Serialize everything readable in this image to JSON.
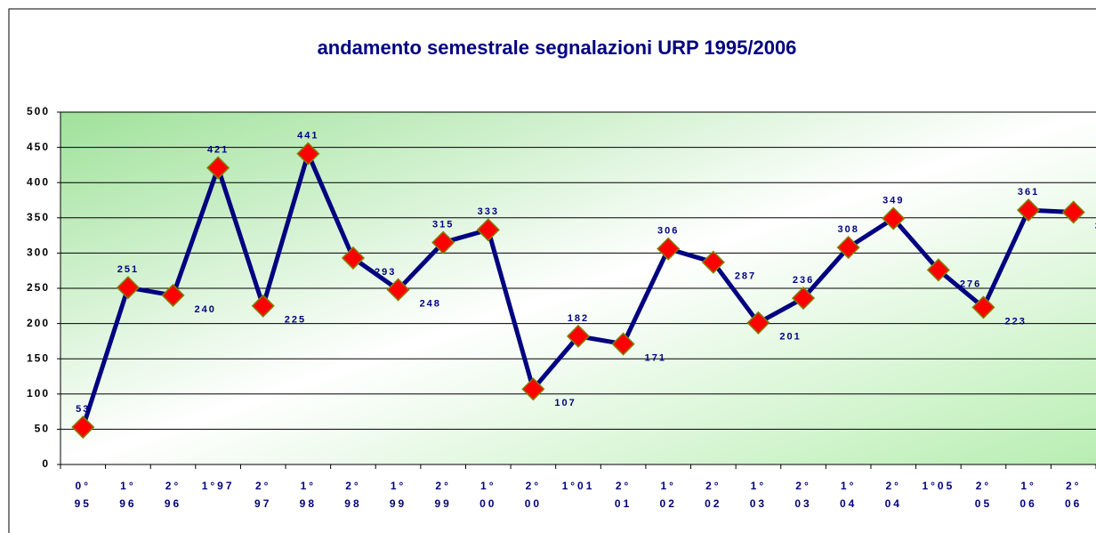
{
  "chart_data": {
    "type": "line",
    "title": "andamento semestrale segnalazioni URP 1995/2006",
    "categories": [
      "0°\n95",
      "1°\n96",
      "2°\n96",
      "1°97",
      "2°\n97",
      "1°\n98",
      "2°\n98",
      "1°\n99",
      "2°\n99",
      "1°\n00",
      "2°\n00",
      "1°01",
      "2°\n01",
      "1°\n02",
      "2°\n02",
      "1°\n03",
      "2°\n03",
      "1°\n04",
      "2°\n04",
      "1°05",
      "2°\n05",
      "1°\n06",
      "2°\n06"
    ],
    "values": [
      53,
      251,
      240,
      421,
      225,
      441,
      293,
      248,
      315,
      333,
      107,
      182,
      171,
      306,
      287,
      201,
      236,
      308,
      349,
      276,
      223,
      361,
      358
    ],
    "color": "#000080",
    "marker_color": "#ff0000",
    "ylim": [
      0,
      500
    ],
    "yticks": [
      0,
      50,
      100,
      150,
      200,
      250,
      300,
      350,
      400,
      450,
      500
    ],
    "grid": true
  }
}
